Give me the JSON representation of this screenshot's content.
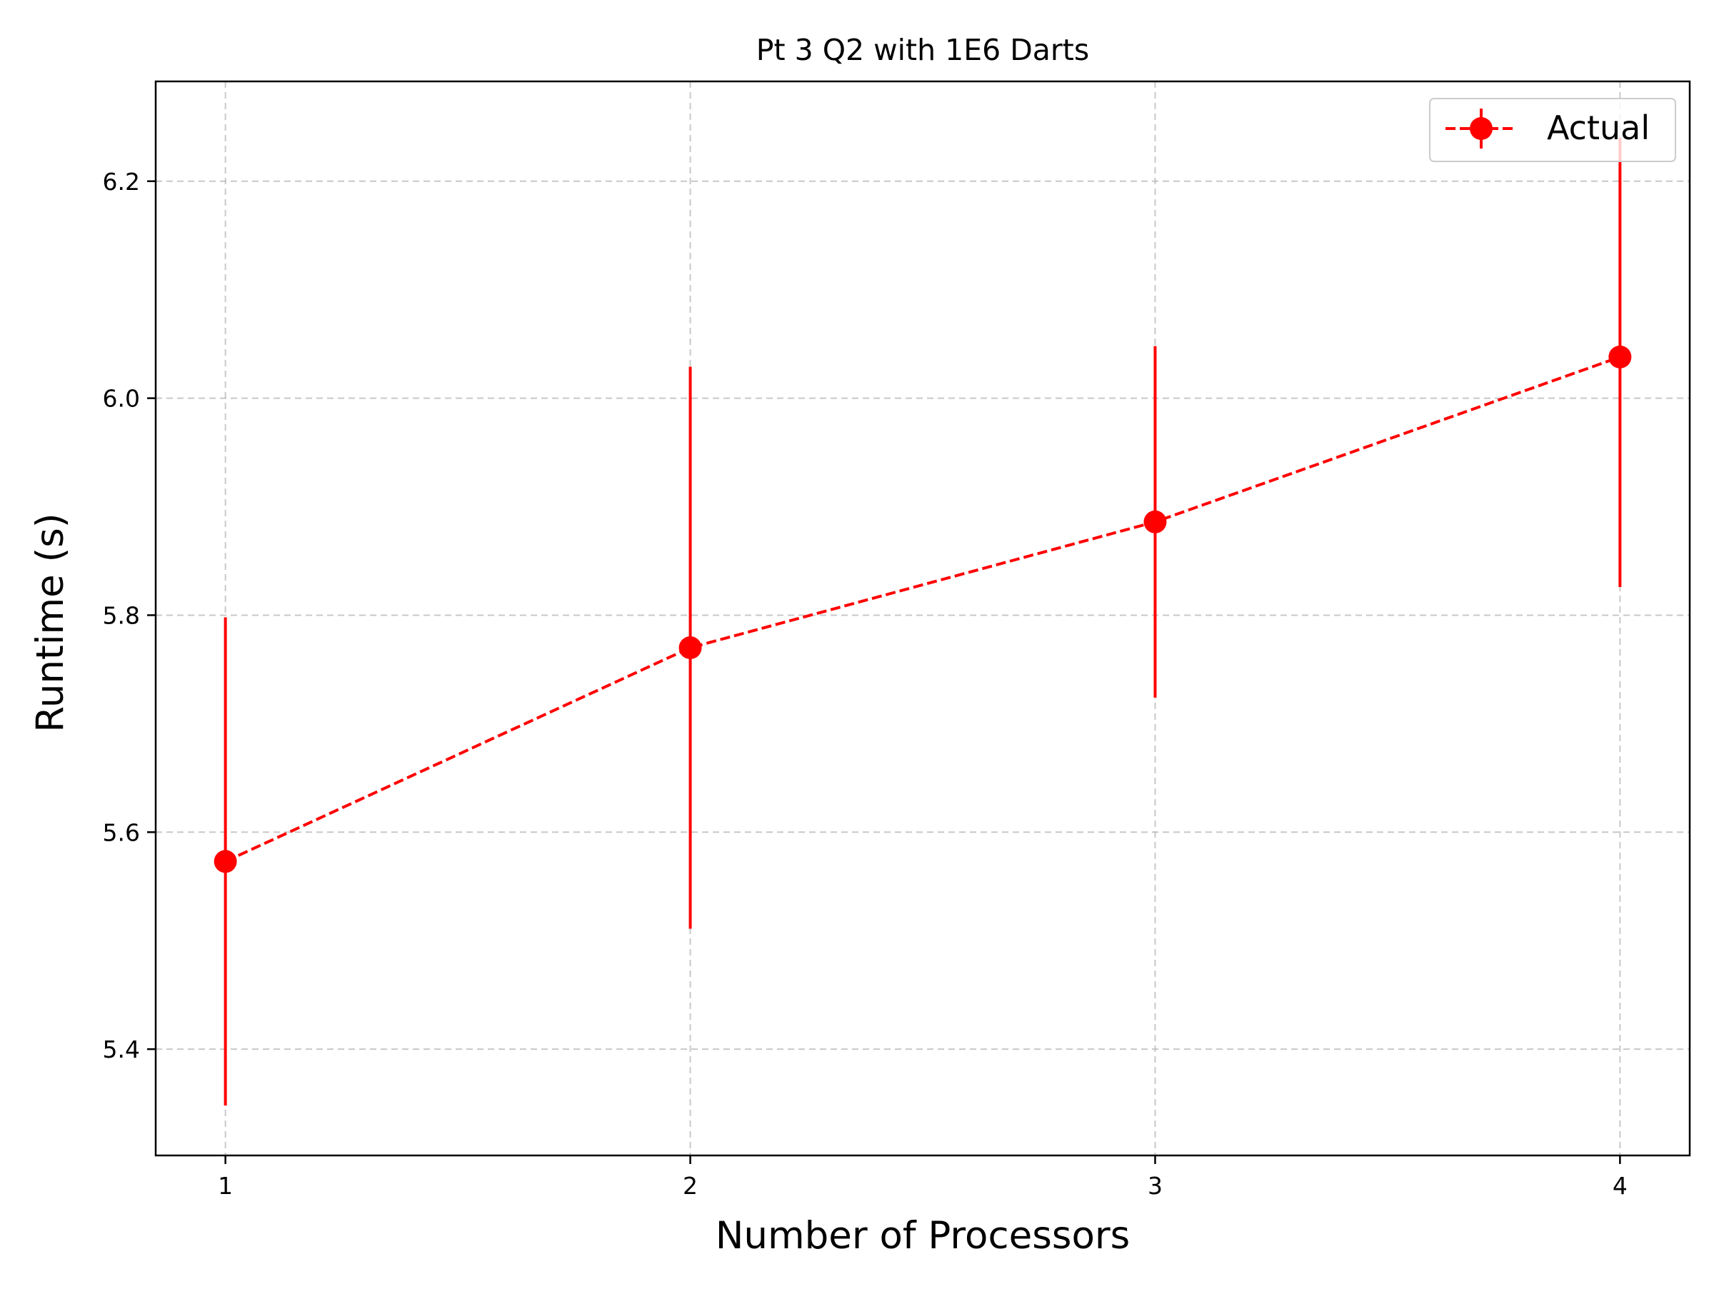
{
  "chart_data": {
    "type": "line",
    "title": "Pt 3 Q2 with 1E6 Darts",
    "xlabel": "Number of Processors",
    "ylabel": "Runtime (s)",
    "x": [
      1,
      2,
      3,
      4
    ],
    "xticks": [
      "1",
      "2",
      "3",
      "4"
    ],
    "yticks": [
      "5.4",
      "5.6",
      "5.8",
      "6.0",
      "6.2"
    ],
    "ytick_values": [
      5.4,
      5.6,
      5.8,
      6.0,
      6.2
    ],
    "xlim": [
      0.85,
      4.15
    ],
    "ylim": [
      5.302,
      6.292
    ],
    "grid": true,
    "legend_position": "top-right",
    "series": [
      {
        "name": "Actual",
        "color": "#ff0000",
        "line_style": "dashed",
        "marker": "circle",
        "values": [
          5.573,
          5.77,
          5.886,
          6.038
        ],
        "error_low": [
          5.348,
          5.511,
          5.724,
          5.826
        ],
        "error_high": [
          5.798,
          6.029,
          6.048,
          6.24
        ]
      }
    ]
  }
}
